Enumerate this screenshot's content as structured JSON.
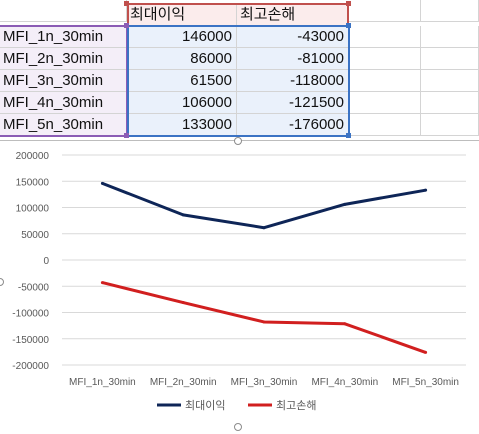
{
  "sheet": {
    "headers": [
      "최대이익",
      "최고손해"
    ],
    "rows": [
      {
        "label": "MFI_1n_30min",
        "max_profit": "146000",
        "max_loss": "-43000"
      },
      {
        "label": "MFI_2n_30min",
        "max_profit": "86000",
        "max_loss": "-81000"
      },
      {
        "label": "MFI_3n_30min",
        "max_profit": "61500",
        "max_loss": "-118000"
      },
      {
        "label": "MFI_4n_30min",
        "max_profit": "106000",
        "max_loss": "-121500"
      },
      {
        "label": "MFI_5n_30min",
        "max_profit": "133000",
        "max_loss": "-176000"
      }
    ]
  },
  "colors": {
    "series_profit": "#0e2557",
    "series_loss": "#d11f1f",
    "label_range": "#8b5cb5",
    "value_range": "#3b73c4",
    "header_range": "#c0504d"
  },
  "chart_data": {
    "type": "line",
    "categories": [
      "MFI_1n_30min",
      "MFI_2n_30min",
      "MFI_3n_30min",
      "MFI_4n_30min",
      "MFI_5n_30min"
    ],
    "series": [
      {
        "name": "최대이익",
        "values": [
          146000,
          86000,
          61500,
          106000,
          133000
        ],
        "color": "#0e2557"
      },
      {
        "name": "최고손해",
        "values": [
          -43000,
          -81000,
          -118000,
          -121500,
          -176000
        ],
        "color": "#d11f1f"
      }
    ],
    "ylim": [
      -200000,
      200000
    ],
    "yticks": [
      200000,
      150000,
      100000,
      50000,
      0,
      -50000,
      -100000,
      -150000,
      -200000
    ],
    "grid": true,
    "legend": "bottom",
    "title": "",
    "xlabel": "",
    "ylabel": ""
  }
}
